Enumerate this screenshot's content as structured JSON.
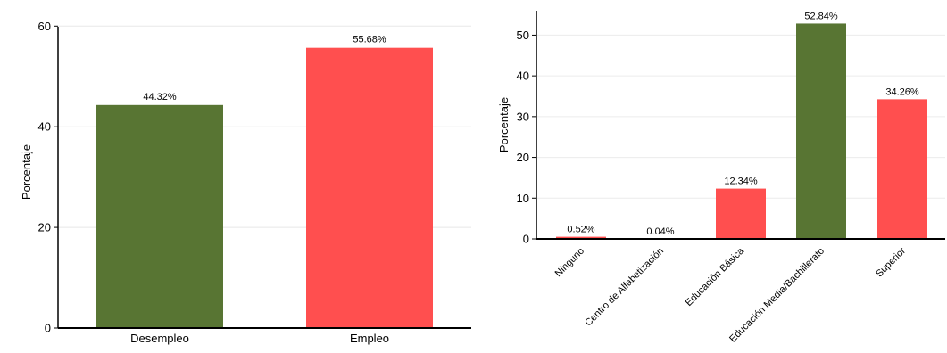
{
  "chart_data": [
    {
      "type": "bar",
      "title": "",
      "xlabel": "",
      "ylabel": "Porcentaje",
      "ylim": [
        0,
        62
      ],
      "yticks": [
        0,
        20,
        40,
        60
      ],
      "grid": true,
      "categories": [
        "Desempleo",
        "Empleo"
      ],
      "values": [
        44.32,
        55.68
      ],
      "value_labels": [
        "44.32%",
        "55.68%"
      ],
      "colors": [
        "#55722f",
        "#ff4b4b"
      ]
    },
    {
      "type": "bar",
      "title": "",
      "xlabel": "",
      "ylabel": "Porcentaje",
      "ylim": [
        0,
        56
      ],
      "yticks": [
        0,
        10,
        20,
        30,
        40,
        50
      ],
      "grid": true,
      "categories": [
        "Ninguno",
        "Centro de Alfabetización",
        "Educación Básica",
        "Educación Media/Bachillerato",
        "Superior"
      ],
      "values": [
        0.52,
        0.04,
        12.34,
        52.84,
        34.26
      ],
      "value_labels": [
        "0.52%",
        "0.04%",
        "12.34%",
        "52.84%",
        "34.26%"
      ],
      "colors": [
        "#ff4b4b",
        "#ff4b4b",
        "#ff4b4b",
        "#55722f",
        "#ff4b4b"
      ]
    }
  ]
}
